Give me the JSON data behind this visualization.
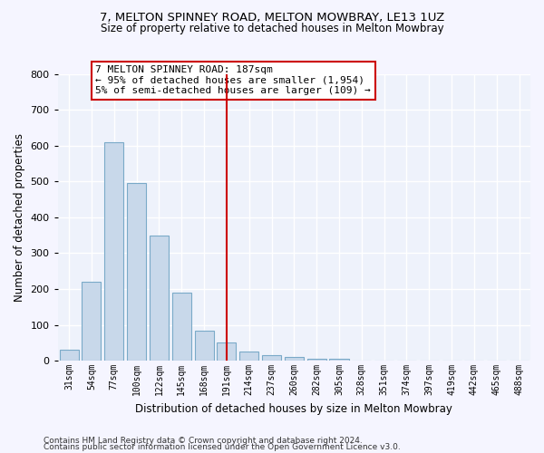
{
  "title": "7, MELTON SPINNEY ROAD, MELTON MOWBRAY, LE13 1UZ",
  "subtitle": "Size of property relative to detached houses in Melton Mowbray",
  "xlabel": "Distribution of detached houses by size in Melton Mowbray",
  "ylabel": "Number of detached properties",
  "categories": [
    "31sqm",
    "54sqm",
    "77sqm",
    "100sqm",
    "122sqm",
    "145sqm",
    "168sqm",
    "191sqm",
    "214sqm",
    "237sqm",
    "260sqm",
    "282sqm",
    "305sqm",
    "328sqm",
    "351sqm",
    "374sqm",
    "397sqm",
    "419sqm",
    "442sqm",
    "465sqm",
    "488sqm"
  ],
  "values": [
    30,
    220,
    610,
    495,
    350,
    190,
    85,
    50,
    25,
    15,
    10,
    5,
    5,
    0,
    0,
    0,
    0,
    0,
    0,
    0,
    0
  ],
  "bar_color": "#c8d8ea",
  "bar_edge_color": "#7aaac8",
  "vline_x_index": 7,
  "vline_color": "#cc0000",
  "annotation_text": "7 MELTON SPINNEY ROAD: 187sqm\n← 95% of detached houses are smaller (1,954)\n5% of semi-detached houses are larger (109) →",
  "annotation_box_color": "#ffffff",
  "annotation_box_edge": "#cc0000",
  "ylim": [
    0,
    800
  ],
  "yticks": [
    0,
    100,
    200,
    300,
    400,
    500,
    600,
    700,
    800
  ],
  "bg_color": "#eef2fb",
  "grid_color": "#ffffff",
  "footer1": "Contains HM Land Registry data © Crown copyright and database right 2024.",
  "footer2": "Contains public sector information licensed under the Open Government Licence v3.0."
}
